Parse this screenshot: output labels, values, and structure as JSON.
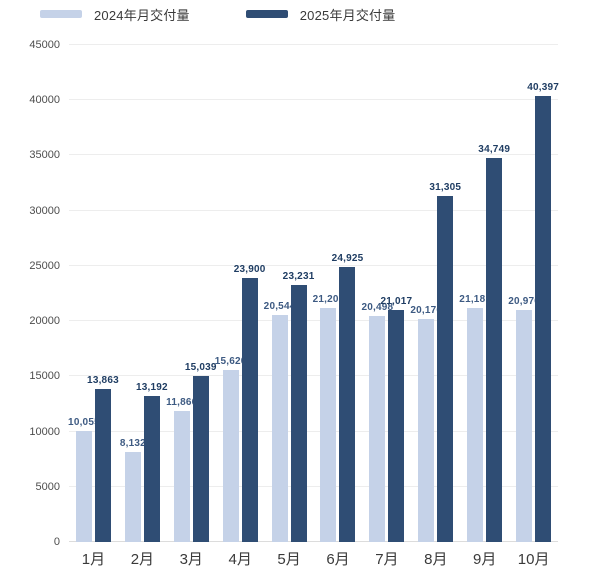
{
  "legend": {
    "items": [
      {
        "label": "2024年月交付量",
        "color": "#c5d2e8"
      },
      {
        "label": "2025年月交付量",
        "color": "#2f4d74"
      }
    ]
  },
  "chart_data": {
    "type": "bar",
    "title": "",
    "xlabel": "",
    "ylabel": "",
    "categories": [
      "1月",
      "2月",
      "3月",
      "4月",
      "5月",
      "6月",
      "7月",
      "8月",
      "9月",
      "10月"
    ],
    "series": [
      {
        "name": "2024年月交付量",
        "color": "#c5d2e8",
        "label_color": "#3d5a82",
        "values": [
          10055,
          8132,
          11866,
          15620,
          20544,
          21209,
          20498,
          20176,
          21181,
          20976
        ]
      },
      {
        "name": "2025年月交付量",
        "color": "#2f4d74",
        "label_color": "#1f3d63",
        "values": [
          13863,
          13192,
          15039,
          23900,
          23231,
          24925,
          21017,
          31305,
          34749,
          40397
        ]
      }
    ],
    "ylim": [
      0,
      45000
    ],
    "ytick_step": 5000,
    "yticks": [
      0,
      5000,
      10000,
      15000,
      20000,
      25000,
      30000,
      35000,
      40000,
      45000
    ],
    "grid": "horizontal",
    "legend_position": "top-left",
    "value_labels": true
  }
}
